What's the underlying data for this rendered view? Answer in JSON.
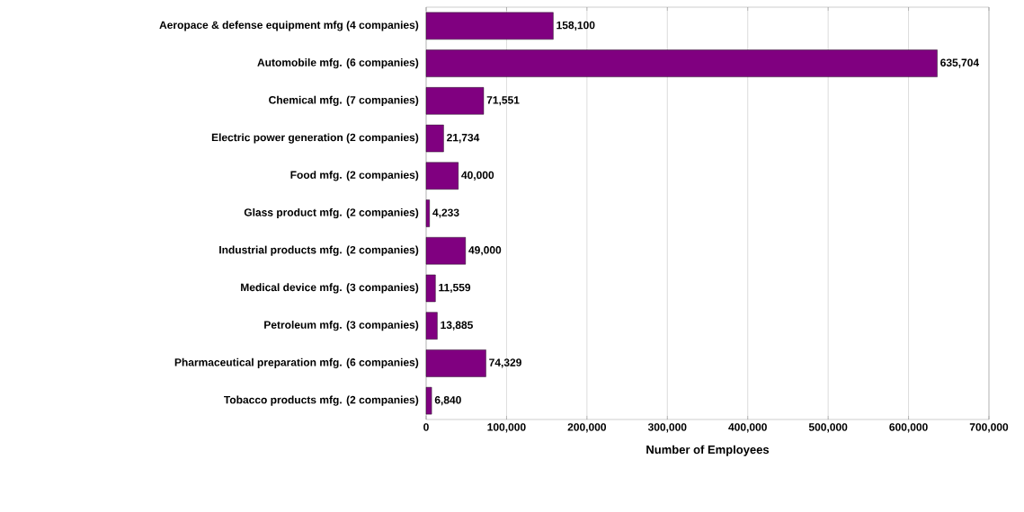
{
  "chart_data": {
    "type": "bar",
    "orientation": "horizontal",
    "categories": [
      "Aeropace & defense equipment mfg (4 companies)",
      "Automobile mfg. (6 companies)",
      "Chemical mfg. (7 companies)",
      "Electric power generation (2 companies)",
      "Food mfg. (2 companies)",
      "Glass product mfg. (2 companies)",
      "Industrial products mfg. (2 companies)",
      "Medical device mfg. (3 companies)",
      "Petroleum mfg. (3 companies)",
      "Pharmaceutical preparation mfg. (6 companies)",
      "Tobacco products mfg. (2 companies)"
    ],
    "values": [
      158100,
      635704,
      71551,
      21734,
      40000,
      4233,
      49000,
      11559,
      13885,
      74329,
      6840
    ],
    "value_labels": [
      "158,100",
      "635,704",
      "71,551",
      "21,734",
      "40,000",
      "4,233",
      "49,000",
      "11,559",
      "13,885",
      "74,329",
      "6,840"
    ],
    "color": "#800080",
    "xlabel": "Number of Employees",
    "xlim": [
      0,
      700000
    ],
    "xticks": [
      0,
      {
        "value": 100000,
        "label": "100,000"
      },
      {
        "value": 200000,
        "label": "200,000"
      },
      {
        "value": 300000,
        "label": "300,000"
      },
      {
        "value": 400000,
        "label": "400,000"
      },
      {
        "value": 500000,
        "label": "500,000"
      },
      {
        "value": 600000,
        "label": "600,000"
      },
      {
        "value": 700000,
        "label": "700,000"
      }
    ],
    "grid": "x"
  }
}
